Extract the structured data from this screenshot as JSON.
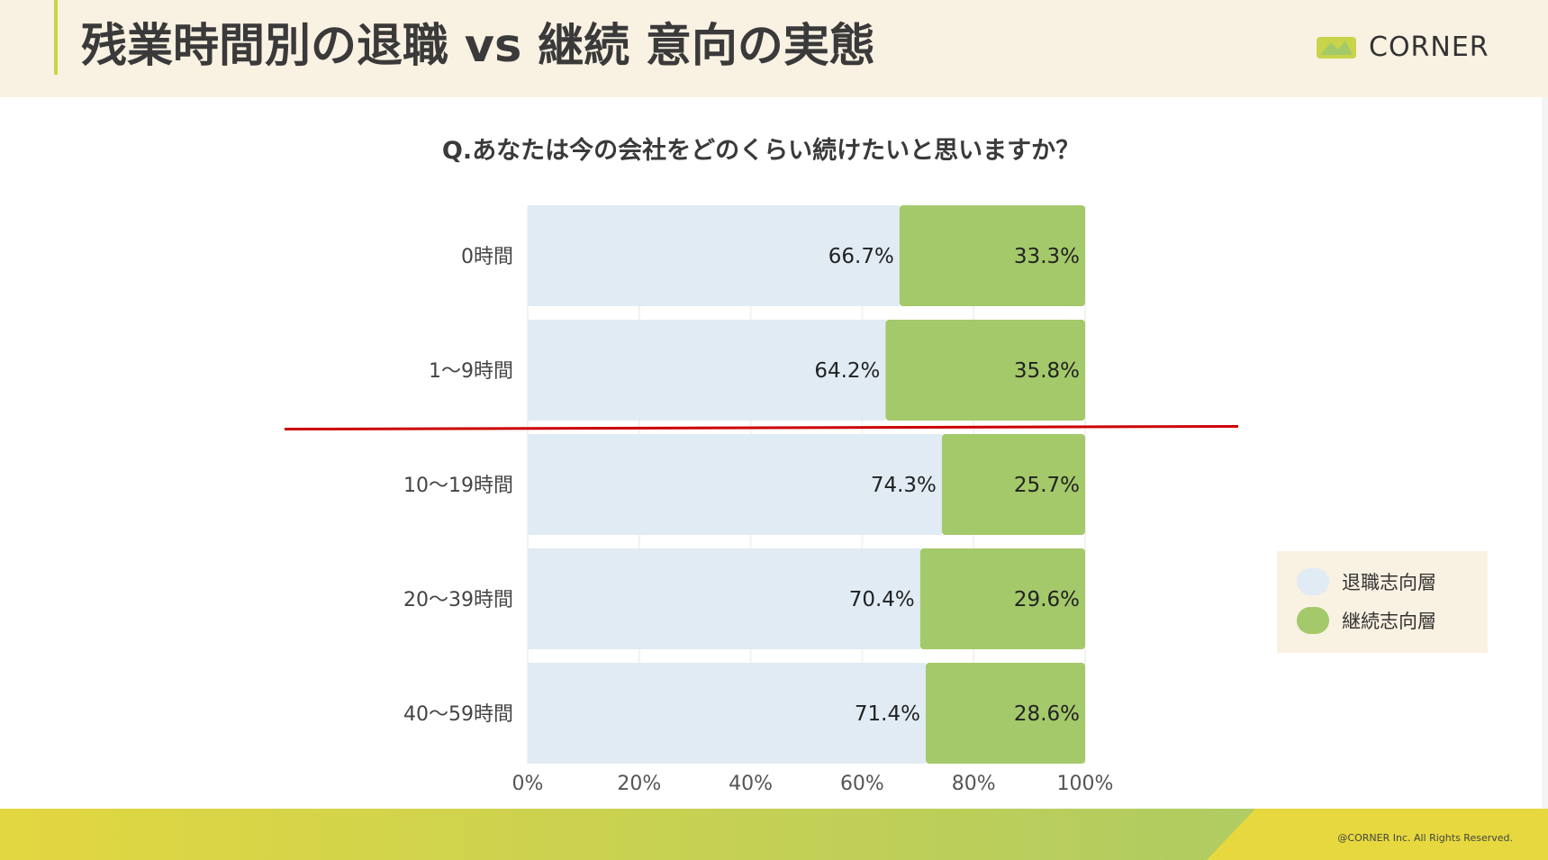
{
  "header": {
    "title": "残業時間別の退職 vs 継続 意向の実態",
    "logo_text": "CORNER"
  },
  "colors": {
    "header_bg": "#f9f1e2",
    "leave": "#e1ebf4",
    "stay": "#a4c96a",
    "divider_line": "#cc0000",
    "accent": "#c9d44a"
  },
  "icons": {
    "logo": "corner-logo-icon"
  },
  "chart_data": {
    "type": "bar",
    "orientation": "horizontal",
    "stacked": true,
    "title": "Q.あなたは今の会社をどのくらい続けたいと思いますか？",
    "categories": [
      "0時間",
      "1〜9時間",
      "10〜19時間",
      "20〜39時間",
      "40〜59時間"
    ],
    "series": [
      {
        "name": "退職志向層",
        "values": [
          66.7,
          64.2,
          74.3,
          70.4,
          71.4
        ],
        "labels": [
          "66.7%",
          "64.2%",
          "74.3%",
          "70.4%",
          "71.4%"
        ]
      },
      {
        "name": "継続志向層",
        "values": [
          33.3,
          35.8,
          25.7,
          29.6,
          28.6
        ],
        "labels": [
          "33.3%",
          "35.8%",
          "25.7%",
          "29.6%",
          "28.6%"
        ]
      }
    ],
    "xlim": [
      0,
      100
    ],
    "x_ticks": [
      "0%",
      "20%",
      "40%",
      "60%",
      "80%",
      "100%"
    ],
    "grid": true,
    "legend_position": "right",
    "annotation": "red horizontal divider line between 1〜9時間 and 10〜19時間"
  },
  "footer": {
    "copyright": "@CORNER Inc. All Rights Reserved."
  }
}
